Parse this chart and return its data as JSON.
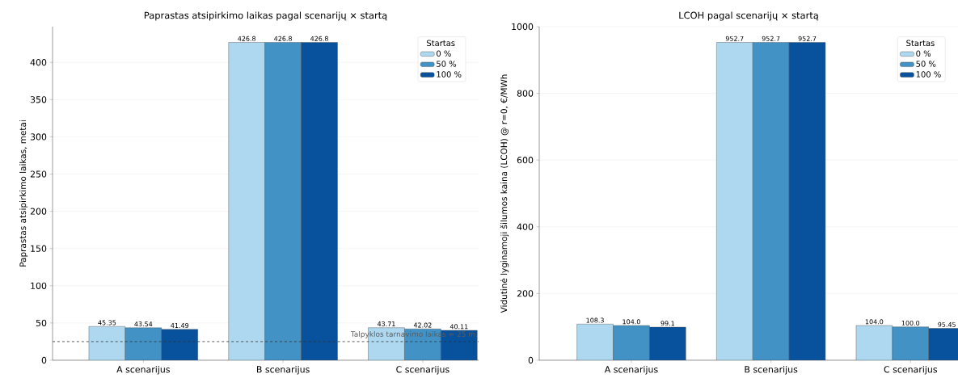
{
  "chart_data": [
    {
      "type": "bar",
      "title": "Paprastas atsipirkimo laikas pagal scenarijų × startą",
      "ylabel": "Paprastas atsipirkimo laikas, metai",
      "legend_title": "Startas",
      "categories": [
        "A scenarijus",
        "B scenarijus",
        "C scenarijus"
      ],
      "series": [
        {
          "name": "0 %",
          "color": "#aed8f0",
          "values": [
            45.35,
            426.8,
            43.71
          ]
        },
        {
          "name": "50 %",
          "color": "#4292c6",
          "values": [
            43.54,
            426.8,
            42.02
          ]
        },
        {
          "name": "100 %",
          "color": "#08519c",
          "values": [
            41.49,
            426.8,
            40.11
          ]
        }
      ],
      "ylim": [
        0,
        448
      ],
      "yticks": [
        0,
        50,
        100,
        150,
        200,
        250,
        300,
        350,
        400
      ],
      "grid": "y",
      "legend": "top right",
      "data_labels": true,
      "ref_lines": [
        {
          "axis": "y",
          "value": 25,
          "label": "Talpyklos tarnavimo laikas = 25 m.",
          "color": "#333333",
          "line_style": "dashed"
        }
      ]
    },
    {
      "type": "bar",
      "title": "LCOH pagal scenarijų × startą",
      "ylabel": "Vidutinė lyginamoji šilumos kaina (LCOH) @ r=0, €/MWh",
      "legend_title": "Startas",
      "categories": [
        "A scenarijus",
        "B scenarijus",
        "C scenarijus"
      ],
      "series": [
        {
          "name": "0 %",
          "color": "#aed8f0",
          "values": [
            108.3,
            952.7,
            104.0
          ],
          "value_labels": [
            "108.3",
            "952.7",
            "104.0"
          ]
        },
        {
          "name": "50 %",
          "color": "#4292c6",
          "values": [
            104.0,
            952.7,
            100.0
          ],
          "value_labels": [
            "104.0",
            "952.7",
            "100.0"
          ]
        },
        {
          "name": "100 %",
          "color": "#08519c",
          "values": [
            99.1,
            952.7,
            95.45
          ],
          "value_labels": [
            "99.1",
            "952.7",
            "95.45"
          ]
        }
      ],
      "ylim": [
        0,
        1000
      ],
      "yticks": [
        0,
        200,
        400,
        600,
        800,
        1000
      ],
      "grid": "y",
      "legend": "top right"
    }
  ]
}
